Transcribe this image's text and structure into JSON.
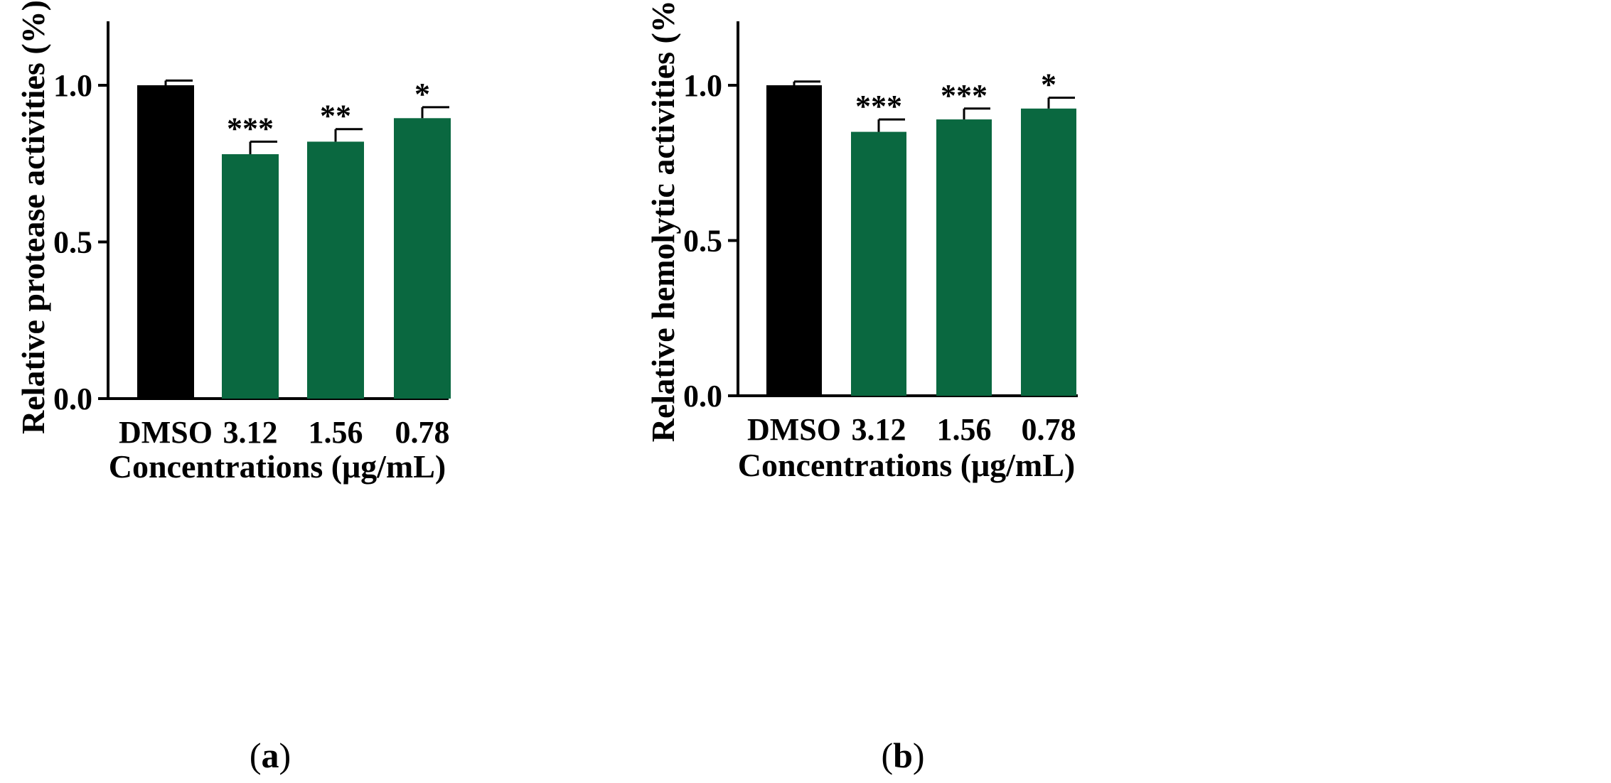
{
  "chart_data": [
    {
      "type": "bar",
      "panel_label": "a",
      "categories": [
        "DMSO",
        "3.12",
        "1.56",
        "0.78"
      ],
      "values": [
        1.0,
        0.78,
        0.82,
        0.895
      ],
      "errors": [
        0.015,
        0.04,
        0.04,
        0.035
      ],
      "significance": [
        "",
        "***",
        "**",
        "*"
      ],
      "bar_colors": [
        "#000000",
        "#0a6840",
        "#0a6840",
        "#0a6840"
      ],
      "ylabel": "Relative protease activities (%)",
      "xlabel": "Concentrations (μg/mL)",
      "ylim": [
        0,
        1.2
      ],
      "yticks": [
        "0.0",
        "0.5",
        "1.0"
      ]
    },
    {
      "type": "bar",
      "panel_label": "b",
      "categories": [
        "DMSO",
        "3.12",
        "1.56",
        "0.78"
      ],
      "values": [
        1.0,
        0.85,
        0.89,
        0.925
      ],
      "errors": [
        0.012,
        0.04,
        0.035,
        0.035
      ],
      "significance": [
        "",
        "***",
        "***",
        "*"
      ],
      "bar_colors": [
        "#000000",
        "#0a6840",
        "#0a6840",
        "#0a6840"
      ],
      "ylabel": "Relative hemolytic activities (%)",
      "xlabel": "Concentrations (μg/mL)",
      "ylim": [
        0,
        1.2
      ],
      "yticks": [
        "0.0",
        "0.5",
        "1.0"
      ]
    }
  ]
}
